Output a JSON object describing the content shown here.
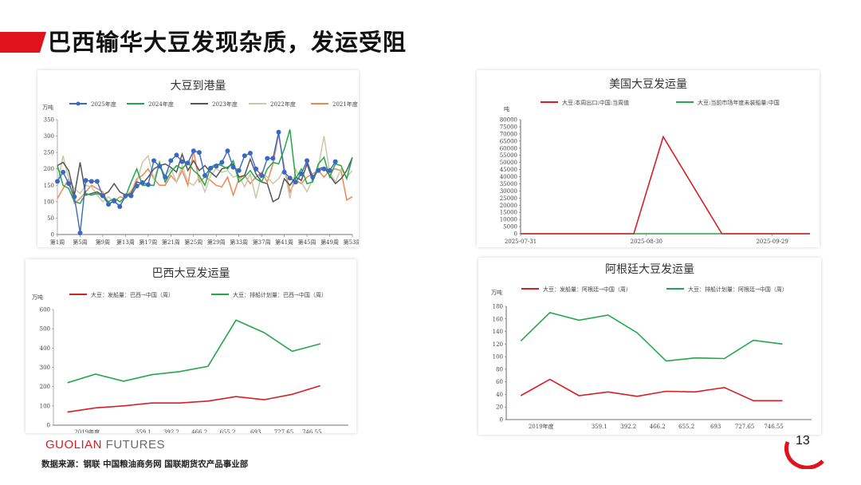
{
  "page": {
    "title": "巴西输华大豆发现杂质，发运受阻",
    "brand_main": "GUOLIAN",
    "brand_sub": " FUTURES",
    "source": "数据来源：钢联  中国粮油商务网  国联期货农产品事业部",
    "page_number": "13",
    "accent_color": "#e0121b"
  },
  "chart_data": [
    {
      "id": "arrivals",
      "type": "line",
      "title": "大豆到港量",
      "ylabel": "万吨",
      "ylim": [
        0,
        350
      ],
      "yticks": [
        0,
        50,
        100,
        150,
        200,
        250,
        300,
        350
      ],
      "x_tick_labels": [
        "第1周",
        "第5周",
        "第9周",
        "第13周",
        "第17周",
        "第21周",
        "第25周",
        "第29周",
        "第33周",
        "第37周",
        "第41周",
        "第45周",
        "第49周",
        "第53周"
      ],
      "x_count": 53,
      "legend": "top",
      "series": [
        {
          "name": "2025年度",
          "color": "#3b67c5",
          "markers": true,
          "values": [
            162,
            190,
            155,
            115,
            5,
            165,
            162,
            162,
            118,
            92,
            102,
            85,
            118,
            118,
            148,
            158,
            152,
            225,
            208,
            175,
            225,
            242,
            222,
            218,
            255,
            250,
            180,
            202,
            208,
            220,
            255,
            205,
            195,
            240,
            248,
            200,
            180,
            232,
            232,
            312,
            190,
            172,
            160,
            185,
            225,
            175,
            195,
            200,
            195,
            222
          ]
        },
        {
          "name": "2024年度",
          "color": "#22a84a",
          "markers": false,
          "values": [
            210,
            150,
            140,
            100,
            95,
            125,
            120,
            125,
            118,
            100,
            110,
            100,
            115,
            160,
            200,
            150,
            150,
            150,
            220,
            160,
            190,
            210,
            200,
            220,
            195,
            180,
            150,
            205,
            215,
            210,
            200,
            225,
            160,
            175,
            195,
            170,
            160,
            200,
            220,
            215,
            260,
            320,
            170,
            200,
            155,
            160,
            215,
            235,
            175,
            215,
            210,
            170,
            235
          ]
        },
        {
          "name": "2023年度",
          "color": "#555555",
          "markers": false,
          "values": [
            210,
            220,
            195,
            120,
            220,
            120,
            125,
            130,
            120,
            130,
            155,
            130,
            120,
            125,
            160,
            155,
            175,
            200,
            210,
            215,
            205,
            190,
            245,
            195,
            225,
            195,
            210,
            190,
            175,
            200,
            205,
            215,
            175,
            180,
            230,
            185,
            160,
            155,
            100,
            110,
            170,
            150,
            175,
            165,
            215,
            165,
            200,
            205,
            180,
            155,
            170,
            195,
            235
          ]
        },
        {
          "name": "2022年度",
          "color": "#c9c9a8",
          "markers": false,
          "values": [
            150,
            240,
            170,
            140,
            125,
            150,
            145,
            120,
            100,
            115,
            100,
            90,
            115,
            135,
            160,
            220,
            240,
            170,
            215,
            180,
            200,
            160,
            210,
            160,
            150,
            175,
            130,
            180,
            200,
            190,
            195,
            175,
            180,
            145,
            185,
            110,
            185,
            175,
            155,
            170,
            200,
            110,
            200,
            160,
            130,
            170,
            205,
            300,
            190,
            160,
            200,
            175,
            195
          ]
        },
        {
          "name": "2021年度",
          "color": "#ee8656",
          "markers": false,
          "values": [
            110,
            140,
            170,
            95,
            110,
            130,
            150,
            140,
            130,
            95,
            100,
            115,
            110,
            130,
            170,
            180,
            200,
            170,
            150,
            150,
            180,
            160,
            195,
            150,
            255,
            160,
            175,
            165,
            150,
            145,
            175,
            120,
            170,
            180,
            155,
            175,
            190,
            160,
            215,
            305,
            205,
            130,
            165,
            155,
            175,
            185,
            195,
            175,
            195,
            200,
            195,
            105,
            115
          ]
        }
      ]
    },
    {
      "id": "us",
      "type": "line",
      "title": "美国大豆发运量",
      "ylabel": "吨",
      "ylim": [
        0,
        80000
      ],
      "yticks": [
        0,
        5000,
        10000,
        15000,
        20000,
        25000,
        30000,
        35000,
        40000,
        45000,
        50000,
        55000,
        60000,
        65000,
        70000,
        75000,
        80000
      ],
      "x_tick_labels": [
        "2025-07-31",
        "2025-08-30",
        "2025-09-29"
      ],
      "legend": "top",
      "series": [
        {
          "name": "大豆:本周出口:中国:当周值",
          "color": "#d61f26",
          "points": [
            [
              "2025-07-31",
              0
            ],
            [
              "2025-08-27",
              0
            ],
            [
              "2025-09-03",
              68000
            ],
            [
              "2025-09-17",
              0
            ],
            [
              "2025-10-08",
              0
            ]
          ]
        },
        {
          "name": "大豆:当前市场年度未装船量:中国",
          "color": "#22a84a",
          "points": [
            [
              "2025-07-31",
              0
            ],
            [
              "2025-10-08",
              0
            ]
          ]
        }
      ]
    },
    {
      "id": "brazil",
      "type": "line",
      "title": "巴西大豆发运量",
      "ylabel": "万吨",
      "ylim": [
        0,
        600
      ],
      "yticks": [
        0,
        100,
        200,
        300,
        400,
        500,
        600
      ],
      "x_tick_labels": [
        "2019年度",
        "",
        "359.1",
        "392.2",
        "466.2",
        "655.2",
        "693",
        "727.65",
        "746.55"
      ],
      "legend": "top",
      "series": [
        {
          "name": "大豆：发船量：巴西→中国（周）",
          "color": "#d61f26",
          "values": [
            68,
            90,
            100,
            115,
            115,
            125,
            148,
            132,
            160,
            205
          ]
        },
        {
          "name": "大豆：排船计划量：巴西→中国（周）",
          "color": "#22a84a",
          "values": [
            220,
            265,
            228,
            262,
            278,
            305,
            545,
            480,
            383,
            422
          ]
        }
      ]
    },
    {
      "id": "argentina",
      "type": "line",
      "title": "阿根廷大豆发运量",
      "ylabel": "万吨",
      "ylim": [
        0,
        180
      ],
      "yticks": [
        0,
        20,
        40,
        60,
        80,
        100,
        120,
        140,
        160,
        180
      ],
      "x_tick_labels": [
        "2019年度",
        "",
        "359.1",
        "392.2",
        "466.2",
        "655.2",
        "693",
        "727.65",
        "746.55"
      ],
      "legend": "top",
      "series": [
        {
          "name": "大豆：发船量：阿根廷→中国（周）",
          "color": "#d61f26",
          "values": [
            38,
            64,
            38,
            44,
            37,
            45,
            44,
            51,
            30,
            30
          ]
        },
        {
          "name": "大豆：排船计划量：阿根廷→中国（周）",
          "color": "#22a84a",
          "values": [
            125,
            170,
            158,
            166,
            138,
            93,
            98,
            97,
            126,
            120
          ]
        }
      ]
    }
  ]
}
